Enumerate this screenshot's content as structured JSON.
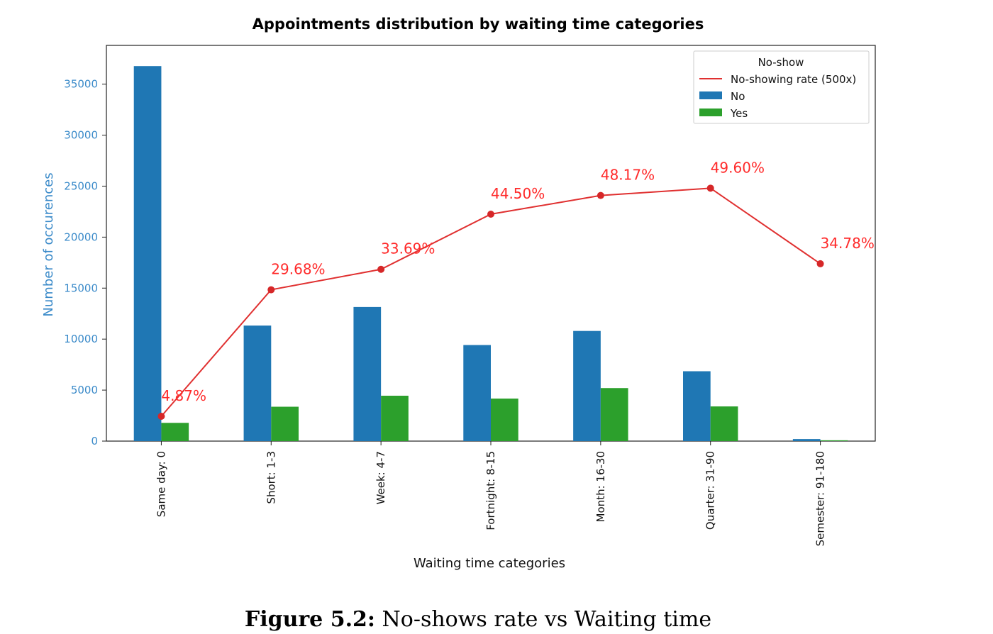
{
  "chart_data": {
    "type": "bar",
    "title": "Appointments distribution by waiting time categories",
    "xlabel": "Waiting time categories",
    "ylabel": "Number of occurences",
    "ylim": [
      0,
      38800
    ],
    "yticks": [
      0,
      5000,
      10000,
      15000,
      20000,
      25000,
      30000,
      35000
    ],
    "categories": [
      "Same day: 0",
      "Short: 1-3",
      "Week: 4-7",
      "Fortnight: 8-15",
      "Month: 16-30",
      "Quarter: 31-90",
      "Semester: 91-180"
    ],
    "series": [
      {
        "name": "No",
        "type": "bar",
        "color": "#1f77b4",
        "values": [
          36770,
          11330,
          13150,
          9420,
          10800,
          6850,
          200
        ]
      },
      {
        "name": "Yes",
        "type": "bar",
        "color": "#2ca02c",
        "values": [
          1790,
          3370,
          4450,
          4170,
          5200,
          3400,
          80
        ]
      },
      {
        "name": "No-showing rate (500x)",
        "type": "line",
        "color": "#e03030",
        "values": [
          2435,
          14840,
          16845,
          22250,
          24085,
          24800,
          17390
        ],
        "labels": [
          "4.87%",
          "29.68%",
          "33.69%",
          "44.50%",
          "48.17%",
          "49.60%",
          "34.78%"
        ]
      }
    ],
    "legend": {
      "title": "No-show",
      "position": "top-right"
    },
    "grid": false
  },
  "caption": {
    "label": "Figure 5.2:",
    "text": " No-shows rate vs Waiting time"
  }
}
